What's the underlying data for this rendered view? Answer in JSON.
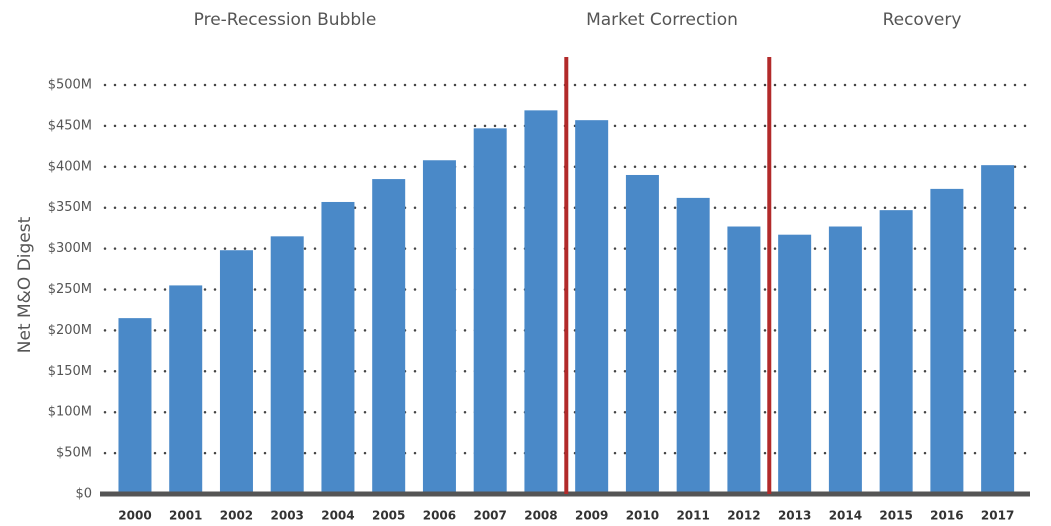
{
  "chart_data": {
    "type": "bar",
    "y_label": "Net M&O Digest",
    "annotations": [
      "Pre-Recession Bubble",
      "Market Correction",
      "Recovery"
    ],
    "categories": [
      "2000",
      "2001",
      "2002",
      "2003",
      "2004",
      "2005",
      "2006",
      "2007",
      "2008",
      "2009",
      "2010",
      "2011",
      "2012",
      "2013",
      "2014",
      "2015",
      "2016",
      "2017"
    ],
    "values": [
      215,
      255,
      298,
      315,
      357,
      385,
      408,
      447,
      469,
      457,
      390,
      362,
      327,
      317,
      327,
      347,
      373,
      402
    ],
    "color": "#4a89c8",
    "ylim": [
      0,
      500
    ],
    "yticks": [
      {
        "value": 0,
        "label": "$0"
      },
      {
        "value": 50,
        "label": "$50M"
      },
      {
        "value": 100,
        "label": "$100M"
      },
      {
        "value": 150,
        "label": "$150M"
      },
      {
        "value": 200,
        "label": "$200M"
      },
      {
        "value": 250,
        "label": "$250M"
      },
      {
        "value": 300,
        "label": "$300M"
      },
      {
        "value": 350,
        "label": "$350M"
      },
      {
        "value": 400,
        "label": "$400M"
      },
      {
        "value": 450,
        "label": "$450M"
      },
      {
        "value": 500,
        "label": "$500M"
      }
    ],
    "grid": true
  }
}
